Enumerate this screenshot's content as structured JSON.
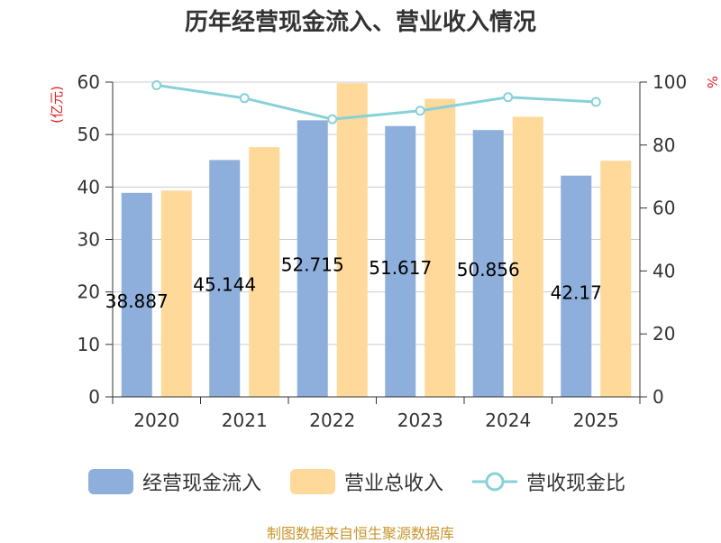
{
  "chart_data": {
    "type": "bar",
    "title": "历年经营现金流入、营业收入情况",
    "categories": [
      "2020",
      "2021",
      "2022",
      "2023",
      "2024",
      "2025"
    ],
    "series": [
      {
        "name": "经营现金流入",
        "type": "bar",
        "axis": "left",
        "color": "#8eaedb",
        "values": [
          38.887,
          45.144,
          52.715,
          51.617,
          50.856,
          42.17
        ],
        "labels": [
          "38.887",
          "45.144",
          "52.715",
          "51.617",
          "50.856",
          "42.17"
        ]
      },
      {
        "name": "营业总收入",
        "type": "bar",
        "axis": "left",
        "color": "#fed999",
        "values": [
          39.3,
          47.6,
          59.8,
          56.8,
          53.4,
          45.0
        ]
      },
      {
        "name": "营收现金比",
        "type": "line",
        "axis": "right",
        "color": "#88d1d8",
        "values": [
          99.0,
          94.9,
          88.2,
          90.9,
          95.2,
          93.7
        ]
      }
    ],
    "left_axis": {
      "unit_label": "(亿元)",
      "ylim": [
        0,
        60
      ],
      "ticks": [
        "0",
        "10",
        "20",
        "30",
        "40",
        "50",
        "60"
      ]
    },
    "right_axis": {
      "unit_label": "%",
      "ylim": [
        0,
        100
      ],
      "ticks": [
        "0",
        "20",
        "40",
        "60",
        "80",
        "100"
      ]
    },
    "grid": true,
    "legend_position": "bottom"
  },
  "footer": {
    "text": "制图数据来自恒生聚源数据库",
    "color": "#c8962d"
  }
}
